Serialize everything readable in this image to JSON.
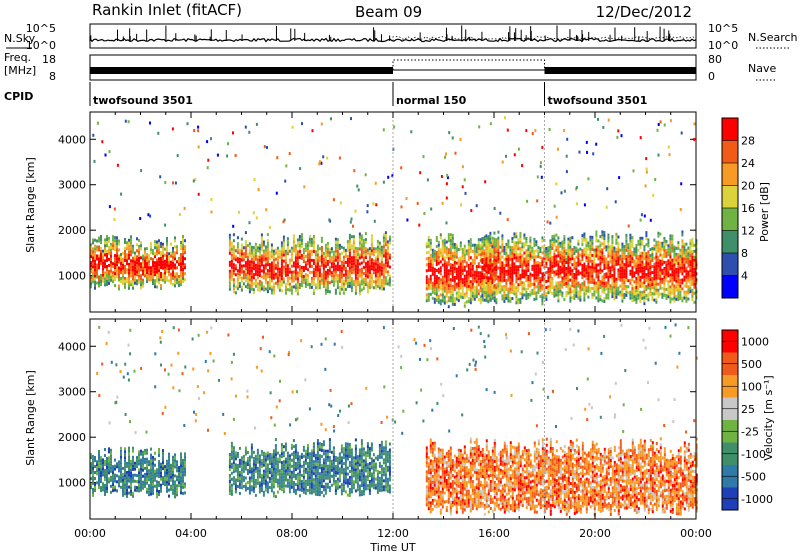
{
  "header": {
    "site": "Rankin Inlet (fitACF)",
    "beam": "Beam 09",
    "date": "12/Dec/2012"
  },
  "top_strip": {
    "nsky_label": "N.Sky",
    "nsky_ticks": [
      "10^5",
      "10^0"
    ],
    "nsearch_label": "N.Search",
    "freq_label_1": "Freq.",
    "freq_label_2": "[MHz]",
    "freq_ticks": [
      "18",
      "8"
    ],
    "nave_ticks": [
      "80",
      "0"
    ],
    "nave_label": "Nave",
    "cpid_label": "CPID",
    "cpid_segments": [
      {
        "label": "twofsound 3501",
        "start_hour": 0,
        "end_hour": 12
      },
      {
        "label": "normal 150",
        "start_hour": 12,
        "end_hour": 18
      },
      {
        "label": "twofsound 3501",
        "start_hour": 18,
        "end_hour": 24
      }
    ]
  },
  "chart_data": [
    {
      "type": "heatmap",
      "title": "",
      "xlabel": "",
      "ylabel": "Slant Range [km]",
      "xlim": [
        0,
        24
      ],
      "ylim": [
        200,
        4600
      ],
      "yticks": [
        "1000",
        "2000",
        "3000",
        "4000"
      ],
      "colorbar": {
        "label": "Power [dB]",
        "ticks": [
          "4",
          "8",
          "12",
          "16",
          "20",
          "24",
          "28"
        ],
        "colors": [
          "#0000ff",
          "#2e4fb0",
          "#3f8f6a",
          "#6fb443",
          "#dcd23c",
          "#f79a26",
          "#f25a17",
          "#ff0000"
        ]
      },
      "regions": [
        {
          "x": [
            0,
            3.8
          ],
          "y": [
            700,
            1900
          ],
          "level": "high"
        },
        {
          "x": [
            5.5,
            11.9
          ],
          "y": [
            600,
            2000
          ],
          "level": "high"
        },
        {
          "x": [
            13.3,
            16.0
          ],
          "y": [
            300,
            2000
          ],
          "level": "medium"
        },
        {
          "x": [
            15.5,
            24
          ],
          "y": [
            400,
            2000
          ],
          "level": "high"
        }
      ]
    },
    {
      "type": "heatmap",
      "title": "",
      "xlabel": "Time UT",
      "ylabel": "Slant Range [km]",
      "xlim": [
        0,
        24
      ],
      "ylim": [
        200,
        4600
      ],
      "xticks": [
        "00:00",
        "04:00",
        "08:00",
        "12:00",
        "16:00",
        "20:00",
        "00:00"
      ],
      "yticks": [
        "1000",
        "2000",
        "3000",
        "4000"
      ],
      "colorbar": {
        "label": "Velocity [m s⁻¹]",
        "ticks": [
          "1000",
          "500",
          "100",
          "25",
          "-25",
          "-100",
          "-500",
          "-1000"
        ],
        "colors": [
          "#1f3fb8",
          "#2e7aa8",
          "#3f8f6a",
          "#6fb443",
          "#c8c8c8",
          "#f79a26",
          "#f05a1a",
          "#ff0000"
        ]
      },
      "regions": [
        {
          "x": [
            0,
            3.8
          ],
          "y": [
            700,
            1800
          ],
          "velocity": "towards"
        },
        {
          "x": [
            5.5,
            11.9
          ],
          "y": [
            700,
            2000
          ],
          "velocity": "towards"
        },
        {
          "x": [
            13.3,
            24
          ],
          "y": [
            300,
            2000
          ],
          "velocity": "away"
        }
      ]
    }
  ],
  "colors": {
    "axis": "#000000",
    "guide": "#aaaaaa",
    "background": "#ffffff"
  }
}
